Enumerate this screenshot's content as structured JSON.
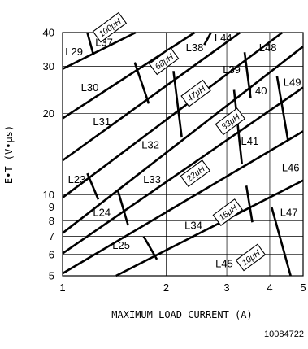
{
  "chart_data": {
    "type": "line",
    "title": "",
    "xlabel": "MAXIMUM LOAD CURRENT (A)",
    "ylabel": "E•T (V•μs)",
    "xscale": "log",
    "yscale": "log",
    "xlim": [
      1,
      5
    ],
    "ylim": [
      5,
      40
    ],
    "grid": true,
    "x_ticks": [
      "1",
      "2",
      "3",
      "4",
      "5"
    ],
    "y_ticks": [
      "5",
      "6",
      "7",
      "8",
      "9",
      "10",
      "20",
      "30",
      "40"
    ],
    "figure_id": "10084722",
    "boundary_lines": [
      {
        "points": [
          [
            1.0,
            29.3
          ],
          [
            1.63,
            40
          ]
        ]
      },
      {
        "points": [
          [
            1.0,
            19.2
          ],
          [
            2.42,
            40
          ]
        ]
      },
      {
        "points": [
          [
            1.0,
            13.4
          ],
          [
            3.28,
            40
          ]
        ]
      },
      {
        "points": [
          [
            1.0,
            9.75
          ],
          [
            4.35,
            40
          ]
        ]
      },
      {
        "points": [
          [
            1.0,
            7.2
          ],
          [
            5.0,
            35.5
          ]
        ]
      },
      {
        "points": [
          [
            1.0,
            6.05
          ],
          [
            5.0,
            25.0
          ]
        ]
      },
      {
        "points": [
          [
            1.0,
            5.1
          ],
          [
            5.0,
            17.2
          ]
        ]
      },
      {
        "points": [
          [
            1.43,
            5.0
          ],
          [
            5.0,
            11.3
          ]
        ]
      },
      {
        "points": [
          [
            1.18,
            40
          ],
          [
            1.23,
            33.0
          ]
        ]
      },
      {
        "points": [
          [
            1.62,
            31.0
          ],
          [
            1.78,
            21.8
          ]
        ]
      },
      {
        "points": [
          [
            2.1,
            28.8
          ],
          [
            2.22,
            16.3
          ]
        ]
      },
      {
        "points": [
          [
            3.15,
            24.5
          ],
          [
            3.32,
            13.0
          ]
        ]
      },
      {
        "points": [
          [
            3.38,
            33.8
          ],
          [
            3.52,
            22.8
          ]
        ]
      },
      {
        "points": [
          [
            4.2,
            27.5
          ],
          [
            4.52,
            15.9
          ]
        ]
      },
      {
        "points": [
          [
            2.7,
            40
          ],
          [
            2.58,
            36.0
          ]
        ]
      },
      {
        "points": [
          [
            1.18,
            12.0
          ],
          [
            1.27,
            9.6
          ]
        ]
      },
      {
        "points": [
          [
            1.45,
            10.3
          ],
          [
            1.55,
            7.7
          ]
        ]
      },
      {
        "points": [
          [
            1.72,
            7.0
          ],
          [
            1.88,
            5.75
          ]
        ]
      },
      {
        "points": [
          [
            3.42,
            10.8
          ],
          [
            3.56,
            7.9
          ]
        ]
      },
      {
        "points": [
          [
            4.05,
            9.0
          ],
          [
            4.6,
            5.0
          ]
        ]
      }
    ],
    "inductance_labels": [
      {
        "text": "100μH",
        "x": 1.37,
        "y": 41.8
      },
      {
        "text": "68μH",
        "x": 1.97,
        "y": 31.3
      },
      {
        "text": "47μH",
        "x": 2.44,
        "y": 23.8
      },
      {
        "text": "33μH",
        "x": 3.07,
        "y": 18.7
      },
      {
        "text": "22μH",
        "x": 2.43,
        "y": 12.0
      },
      {
        "text": "15μH",
        "x": 3.02,
        "y": 8.6
      },
      {
        "text": "10μH",
        "x": 3.52,
        "y": 5.85
      }
    ],
    "regions": [
      {
        "label": "L29",
        "x": 1.08,
        "y": 34.0
      },
      {
        "label": "L37",
        "x": 1.32,
        "y": 36.8
      },
      {
        "label": "L44",
        "x": 2.93,
        "y": 38.2
      },
      {
        "label": "L38",
        "x": 2.42,
        "y": 35.2
      },
      {
        "label": "L48",
        "x": 3.95,
        "y": 35.2
      },
      {
        "label": "L30",
        "x": 1.2,
        "y": 25.0
      },
      {
        "label": "L39",
        "x": 3.1,
        "y": 29.2
      },
      {
        "label": "L49",
        "x": 4.65,
        "y": 26.2
      },
      {
        "label": "L40",
        "x": 3.7,
        "y": 24.3
      },
      {
        "label": "L31",
        "x": 1.3,
        "y": 18.7
      },
      {
        "label": "L41",
        "x": 3.5,
        "y": 15.8
      },
      {
        "label": "L32",
        "x": 1.8,
        "y": 15.3
      },
      {
        "label": "L46",
        "x": 4.6,
        "y": 12.6
      },
      {
        "label": "L23",
        "x": 1.1,
        "y": 11.4
      },
      {
        "label": "L33",
        "x": 1.82,
        "y": 11.4
      },
      {
        "label": "L24",
        "x": 1.3,
        "y": 8.6
      },
      {
        "label": "L47",
        "x": 4.55,
        "y": 8.6
      },
      {
        "label": "L34",
        "x": 2.4,
        "y": 7.7
      },
      {
        "label": "L25",
        "x": 1.48,
        "y": 6.5
      },
      {
        "label": "L45",
        "x": 2.95,
        "y": 5.55
      }
    ]
  }
}
